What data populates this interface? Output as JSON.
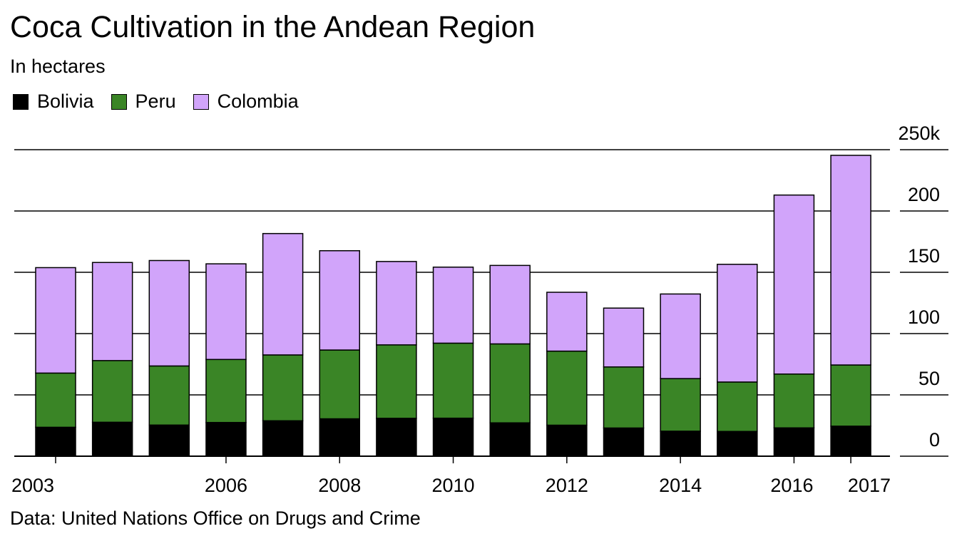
{
  "chart_data": {
    "type": "bar",
    "stacked": true,
    "title": "Coca Cultivation in the Andean Region",
    "subtitle": "In hectares",
    "source": "Data: United Nations Office on Drugs and Crime",
    "x": [
      2003,
      2004,
      2005,
      2006,
      2007,
      2008,
      2009,
      2010,
      2011,
      2012,
      2013,
      2014,
      2015,
      2016,
      2017
    ],
    "x_tick_labels": [
      "2003",
      "2006",
      "2008",
      "2010",
      "2012",
      "2014",
      "2016",
      "2017"
    ],
    "y_tick_labels": [
      "0",
      "50",
      "100",
      "150",
      "200",
      "250k"
    ],
    "ylim": [
      0,
      250000
    ],
    "grid": true,
    "legend_position": "top-left",
    "series": [
      {
        "name": "Bolivia",
        "color": "#000000",
        "values": [
          23600,
          27700,
          25400,
          27500,
          28900,
          30500,
          30900,
          31000,
          27200,
          25300,
          23000,
          20400,
          20200,
          23100,
          24500
        ]
      },
      {
        "name": "Peru",
        "color": "#3a8526",
        "values": [
          44200,
          50300,
          48200,
          51400,
          53700,
          56100,
          59900,
          61200,
          64400,
          60400,
          49800,
          42900,
          40300,
          43900,
          49900
        ]
      },
      {
        "name": "Colombia",
        "color": "#d1a4fa",
        "values": [
          86000,
          80000,
          86000,
          78000,
          99000,
          81000,
          68000,
          62000,
          64000,
          48000,
          48000,
          69000,
          96000,
          146000,
          171000
        ]
      }
    ]
  }
}
